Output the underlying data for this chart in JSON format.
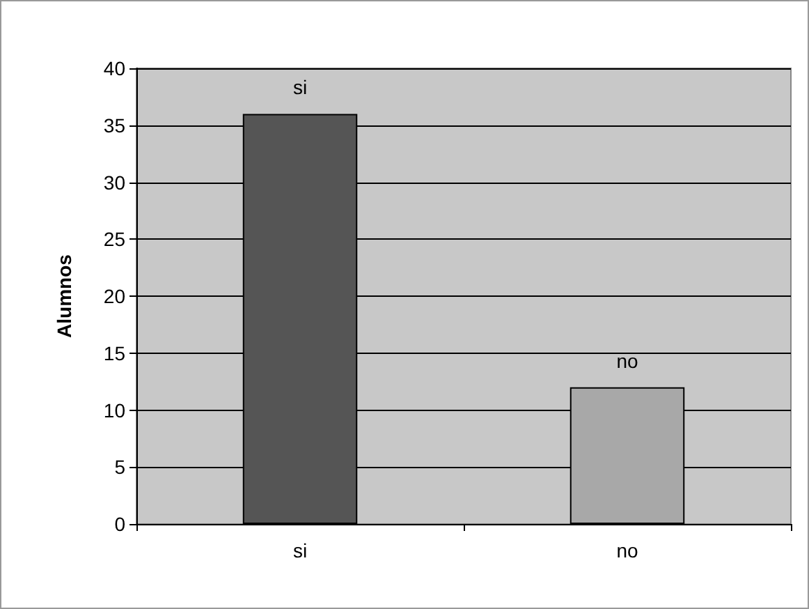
{
  "chart_data": {
    "type": "bar",
    "ylabel": "Alumnos",
    "categories": [
      "si",
      "no"
    ],
    "values": [
      36,
      12
    ],
    "colors": [
      "#555555",
      "#a8a8a8"
    ],
    "value_labels": [
      "si",
      "no"
    ],
    "ylim": [
      0,
      40
    ],
    "yticks": [
      0,
      5,
      10,
      15,
      20,
      25,
      30,
      35,
      40
    ],
    "grid": "y"
  }
}
